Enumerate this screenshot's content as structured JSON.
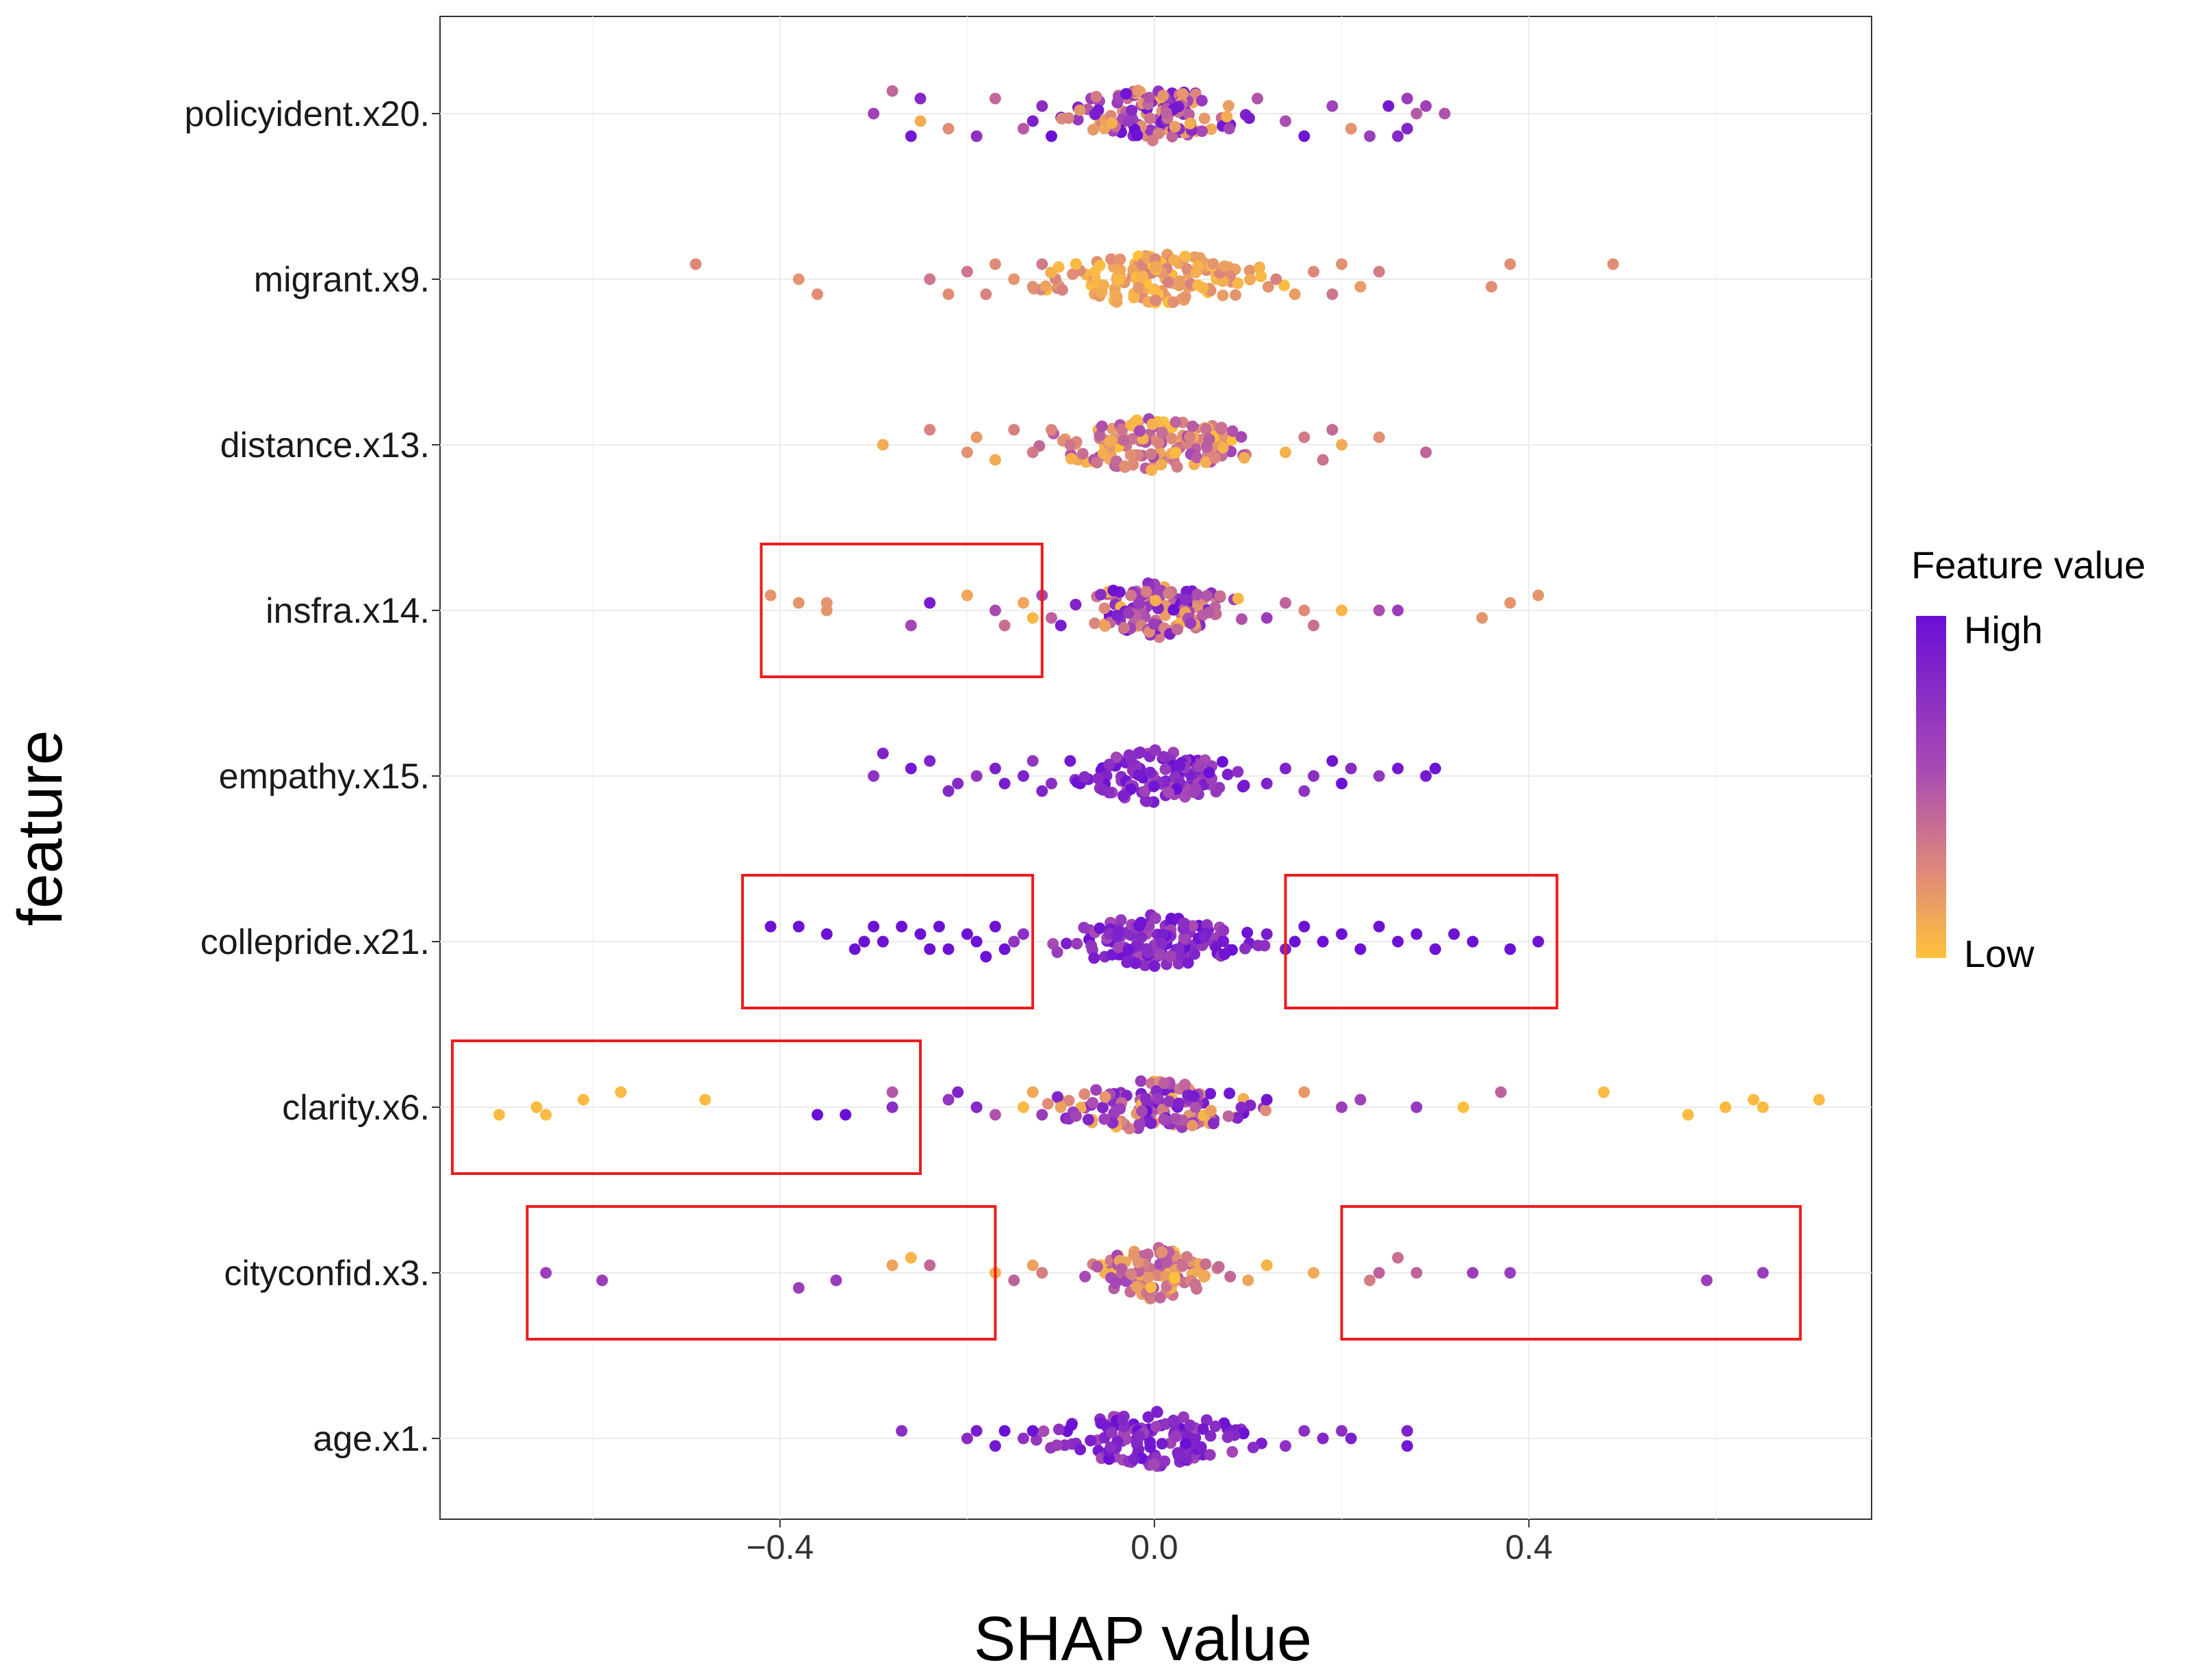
{
  "chart_data": {
    "type": "scatter",
    "subtype": "shap-beeswarm",
    "title": "",
    "xlabel": "SHAP value",
    "ylabel": "feature",
    "xlim": [
      -0.77,
      0.77
    ],
    "xticks": [
      -0.4,
      0.0,
      0.4
    ],
    "xtick_labels": [
      "−0.4",
      "0.0",
      "0.4"
    ],
    "grid": true,
    "features": [
      "policyident.x20.",
      "migrant.x9.",
      "distance.x13.",
      "insfra.x14.",
      "empathy.x15.",
      "collepride.x21.",
      "clarity.x6.",
      "cityconfid.x3.",
      "age.x1."
    ],
    "legend": {
      "title": "Feature value",
      "high_label": "High",
      "low_label": "Low",
      "high_color": "#6a0fd6",
      "mid_color": "#c56a9a",
      "low_color": "#ffc23a",
      "position": "right"
    },
    "highlight_boxes": [
      {
        "feature": "insfra.x14.",
        "x_range": [
          -0.42,
          -0.12
        ]
      },
      {
        "feature": "collepride.x21.",
        "x_range": [
          -0.44,
          -0.13
        ]
      },
      {
        "feature": "collepride.x21.",
        "x_range": [
          0.14,
          0.43
        ]
      },
      {
        "feature": "clarity.x6.",
        "x_range": [
          -0.75,
          -0.25
        ]
      },
      {
        "feature": "cityconfid.x3.",
        "x_range": [
          -0.67,
          -0.17
        ]
      },
      {
        "feature": "cityconfid.x3.",
        "x_range": [
          0.2,
          0.69
        ]
      }
    ],
    "series": [
      {
        "name": "policyident.x20.",
        "values": [
          [
            -0.3,
            0.0
          ],
          [
            -0.28,
            -0.03
          ],
          [
            -0.26,
            0.03
          ],
          [
            -0.25,
            0.01
          ],
          [
            -0.25,
            -0.02
          ],
          [
            -0.22,
            0.02
          ],
          [
            -0.19,
            0.03
          ],
          [
            -0.17,
            -0.02
          ],
          [
            -0.14,
            0.02
          ],
          [
            -0.13,
            0.01
          ],
          [
            -0.12,
            -0.01
          ],
          [
            -0.11,
            0.03
          ],
          [
            0.08,
            0.02
          ],
          [
            0.11,
            -0.02
          ],
          [
            0.14,
            0.01
          ],
          [
            0.16,
            0.03
          ],
          [
            0.19,
            -0.01
          ],
          [
            0.21,
            0.02
          ],
          [
            0.23,
            0.03
          ],
          [
            0.25,
            -0.01
          ],
          [
            0.26,
            0.03
          ],
          [
            0.27,
            -0.02
          ],
          [
            0.28,
            0.0
          ],
          [
            0.29,
            -0.01
          ],
          [
            0.31,
            0.0
          ],
          [
            0.27,
            0.02
          ]
        ],
        "core": {
          "halfwidth": 0.1,
          "bias": "mixed",
          "count": 130
        }
      },
      {
        "name": "migrant.x9.",
        "values": [
          [
            -0.49,
            -0.02
          ],
          [
            -0.38,
            0.0
          ],
          [
            -0.36,
            0.02
          ],
          [
            -0.24,
            0.0
          ],
          [
            -0.22,
            0.02
          ],
          [
            -0.2,
            -0.01
          ],
          [
            -0.18,
            0.02
          ],
          [
            -0.17,
            -0.02
          ],
          [
            -0.15,
            0.0
          ],
          [
            -0.13,
            0.01
          ],
          [
            -0.12,
            -0.02
          ],
          [
            0.13,
            0.0
          ],
          [
            0.15,
            0.02
          ],
          [
            0.17,
            -0.01
          ],
          [
            0.19,
            0.02
          ],
          [
            0.2,
            -0.02
          ],
          [
            0.22,
            0.01
          ],
          [
            0.24,
            -0.01
          ],
          [
            0.36,
            0.01
          ],
          [
            0.38,
            -0.02
          ],
          [
            0.49,
            -0.02
          ]
        ],
        "core": {
          "halfwidth": 0.13,
          "bias": "low",
          "count": 150
        }
      },
      {
        "name": "distance.x13.",
        "values": [
          [
            -0.29,
            0.0
          ],
          [
            -0.24,
            -0.02
          ],
          [
            -0.2,
            0.01
          ],
          [
            -0.19,
            -0.01
          ],
          [
            -0.17,
            0.02
          ],
          [
            -0.15,
            -0.02
          ],
          [
            -0.13,
            0.01
          ],
          [
            -0.11,
            -0.02
          ],
          [
            -0.09,
            0.0
          ],
          [
            0.14,
            0.01
          ],
          [
            0.16,
            -0.01
          ],
          [
            0.18,
            0.02
          ],
          [
            0.19,
            -0.02
          ],
          [
            0.2,
            0.0
          ],
          [
            0.24,
            -0.01
          ],
          [
            0.29,
            0.01
          ]
        ],
        "core": {
          "halfwidth": 0.12,
          "bias": "midlow",
          "count": 150
        }
      },
      {
        "name": "insfra.x14.",
        "values": [
          [
            -0.41,
            -0.02
          ],
          [
            -0.38,
            -0.01
          ],
          [
            -0.35,
            0.0
          ],
          [
            -0.35,
            -0.01
          ],
          [
            -0.26,
            0.02
          ],
          [
            -0.24,
            -0.01
          ],
          [
            -0.2,
            -0.02
          ],
          [
            -0.17,
            0.0
          ],
          [
            -0.16,
            0.02
          ],
          [
            -0.14,
            -0.01
          ],
          [
            -0.13,
            0.01
          ],
          [
            -0.12,
            -0.02
          ],
          [
            -0.11,
            0.01
          ],
          [
            -0.1,
            0.02
          ],
          [
            0.12,
            0.01
          ],
          [
            0.14,
            -0.01
          ],
          [
            0.16,
            0.0
          ],
          [
            0.17,
            0.02
          ],
          [
            0.2,
            0.0
          ],
          [
            0.24,
            0.0
          ],
          [
            0.26,
            0.0
          ],
          [
            0.35,
            0.01
          ],
          [
            0.38,
            -0.01
          ],
          [
            0.41,
            -0.02
          ]
        ],
        "core": {
          "halfwidth": 0.1,
          "bias": "mixed",
          "count": 120
        }
      },
      {
        "name": "empathy.x15.",
        "values": [
          [
            -0.3,
            0.0
          ],
          [
            -0.29,
            -0.03
          ],
          [
            -0.26,
            -0.01
          ],
          [
            -0.24,
            -0.02
          ],
          [
            -0.22,
            0.02
          ],
          [
            -0.21,
            0.01
          ],
          [
            -0.19,
            0.0
          ],
          [
            -0.17,
            -0.01
          ],
          [
            -0.16,
            0.01
          ],
          [
            -0.14,
            0.0
          ],
          [
            -0.13,
            -0.02
          ],
          [
            -0.12,
            0.02
          ],
          [
            -0.11,
            0.01
          ],
          [
            -0.09,
            -0.02
          ],
          [
            0.12,
            0.01
          ],
          [
            0.14,
            -0.01
          ],
          [
            0.16,
            0.02
          ],
          [
            0.17,
            0.0
          ],
          [
            0.19,
            -0.02
          ],
          [
            0.2,
            0.01
          ],
          [
            0.21,
            -0.01
          ],
          [
            0.24,
            0.0
          ],
          [
            0.26,
            -0.01
          ],
          [
            0.29,
            0.0
          ],
          [
            0.3,
            -0.01
          ]
        ],
        "core": {
          "halfwidth": 0.1,
          "bias": "high",
          "count": 120
        }
      },
      {
        "name": "collepride.x21.",
        "values": [
          [
            -0.41,
            -0.02
          ],
          [
            -0.38,
            -0.02
          ],
          [
            -0.35,
            -0.01
          ],
          [
            -0.32,
            0.01
          ],
          [
            -0.31,
            0.0
          ],
          [
            -0.3,
            -0.02
          ],
          [
            -0.29,
            0.0
          ],
          [
            -0.27,
            -0.02
          ],
          [
            -0.25,
            -0.01
          ],
          [
            -0.24,
            0.01
          ],
          [
            -0.23,
            -0.02
          ],
          [
            -0.22,
            0.01
          ],
          [
            -0.2,
            -0.01
          ],
          [
            -0.19,
            0.0
          ],
          [
            -0.18,
            0.02
          ],
          [
            -0.17,
            -0.02
          ],
          [
            -0.16,
            0.01
          ],
          [
            -0.15,
            0.0
          ],
          [
            -0.14,
            -0.01
          ],
          [
            0.12,
            -0.01
          ],
          [
            0.14,
            0.01
          ],
          [
            0.15,
            0.0
          ],
          [
            0.16,
            -0.02
          ],
          [
            0.18,
            0.0
          ],
          [
            0.2,
            -0.01
          ],
          [
            0.22,
            0.01
          ],
          [
            0.24,
            -0.02
          ],
          [
            0.26,
            0.0
          ],
          [
            0.28,
            -0.01
          ],
          [
            0.3,
            0.01
          ],
          [
            0.32,
            -0.01
          ],
          [
            0.34,
            0.0
          ],
          [
            0.38,
            0.01
          ],
          [
            0.41,
            0.0
          ]
        ],
        "core": {
          "halfwidth": 0.11,
          "bias": "high",
          "count": 140
        }
      },
      {
        "name": "clarity.x6.",
        "values": [
          [
            -0.7,
            0.01
          ],
          [
            -0.66,
            0.0
          ],
          [
            -0.65,
            0.01
          ],
          [
            -0.61,
            -0.01
          ],
          [
            -0.57,
            -0.02
          ],
          [
            -0.48,
            -0.01
          ],
          [
            -0.36,
            0.01
          ],
          [
            -0.33,
            0.01
          ],
          [
            -0.28,
            0.0
          ],
          [
            -0.28,
            -0.02
          ],
          [
            -0.22,
            -0.01
          ],
          [
            -0.21,
            -0.02
          ],
          [
            -0.19,
            0.0
          ],
          [
            -0.17,
            0.01
          ],
          [
            -0.14,
            0.0
          ],
          [
            -0.13,
            -0.02
          ],
          [
            -0.12,
            0.01
          ],
          [
            -0.1,
            0.0
          ],
          [
            0.12,
            -0.01
          ],
          [
            0.16,
            -0.02
          ],
          [
            0.2,
            0.0
          ],
          [
            0.22,
            -0.01
          ],
          [
            0.28,
            0.0
          ],
          [
            0.33,
            0.0
          ],
          [
            0.37,
            -0.02
          ],
          [
            0.48,
            -0.02
          ],
          [
            0.57,
            0.01
          ],
          [
            0.61,
            0.0
          ],
          [
            0.64,
            -0.01
          ],
          [
            0.65,
            0.0
          ],
          [
            0.71,
            -0.01
          ]
        ],
        "core": {
          "halfwidth": 0.11,
          "bias": "mixed",
          "count": 130
        }
      },
      {
        "name": "cityconfid.x3.",
        "values": [
          [
            -0.65,
            0.0
          ],
          [
            -0.59,
            0.01
          ],
          [
            -0.38,
            0.02
          ],
          [
            -0.34,
            0.01
          ],
          [
            -0.28,
            -0.01
          ],
          [
            -0.26,
            -0.02
          ],
          [
            -0.24,
            -0.01
          ],
          [
            -0.17,
            0.0
          ],
          [
            -0.15,
            0.01
          ],
          [
            -0.13,
            -0.01
          ],
          [
            -0.12,
            0.0
          ],
          [
            0.1,
            0.01
          ],
          [
            0.12,
            -0.01
          ],
          [
            0.17,
            0.0
          ],
          [
            0.23,
            0.01
          ],
          [
            0.24,
            0.0
          ],
          [
            0.26,
            -0.02
          ],
          [
            0.28,
            0.0
          ],
          [
            0.34,
            0.0
          ],
          [
            0.38,
            0.0
          ],
          [
            0.59,
            0.01
          ],
          [
            0.65,
            0.0
          ]
        ],
        "core": {
          "halfwidth": 0.07,
          "bias": "midlow",
          "count": 110
        }
      },
      {
        "name": "age.x1.",
        "values": [
          [
            -0.27,
            -0.01
          ],
          [
            -0.2,
            0.0
          ],
          [
            -0.19,
            -0.01
          ],
          [
            -0.17,
            0.01
          ],
          [
            -0.16,
            -0.01
          ],
          [
            -0.14,
            0.0
          ],
          [
            -0.13,
            -0.01
          ],
          [
            0.14,
            0.01
          ],
          [
            0.16,
            -0.01
          ],
          [
            0.18,
            0.0
          ],
          [
            0.2,
            -0.01
          ],
          [
            0.21,
            0.0
          ],
          [
            0.27,
            0.01
          ],
          [
            0.27,
            -0.01
          ]
        ],
        "core": {
          "halfwidth": 0.12,
          "bias": "high",
          "count": 140
        }
      }
    ]
  }
}
